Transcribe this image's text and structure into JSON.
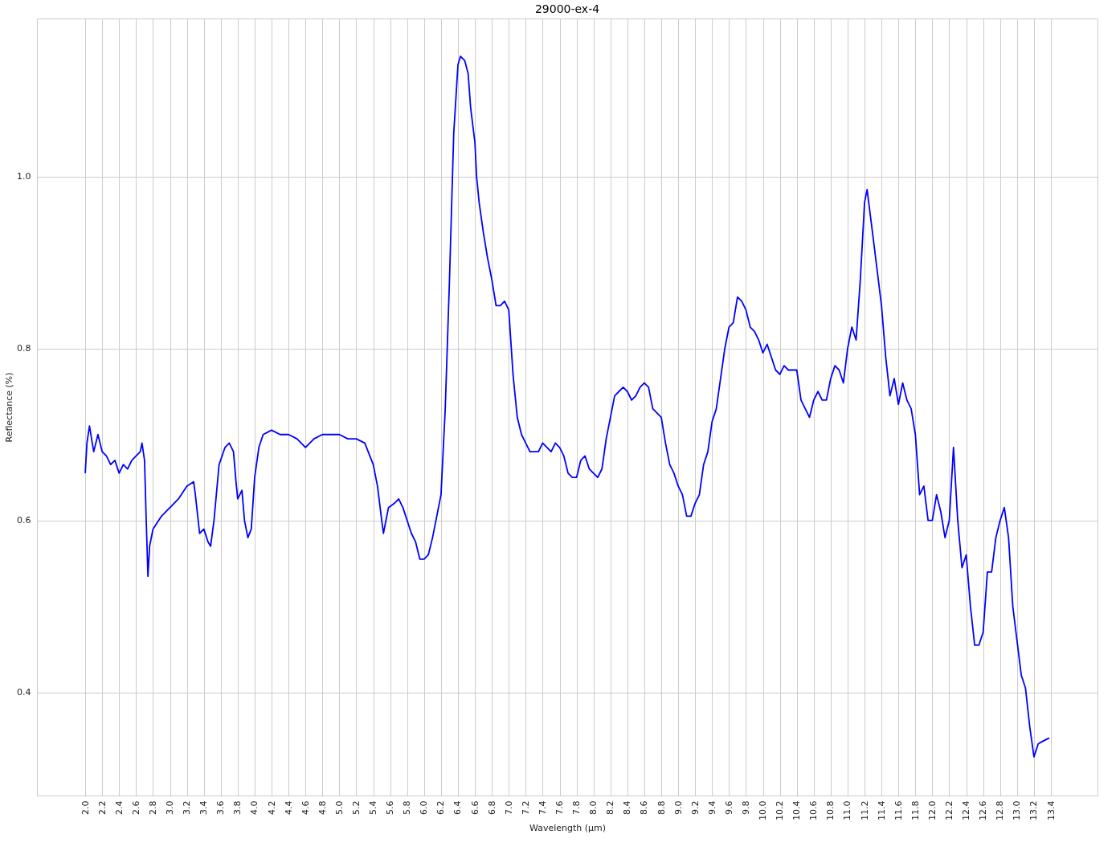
{
  "chart_data": {
    "type": "line",
    "title": "29000-ex-4",
    "xlabel": "Wavelength (µm)",
    "ylabel": "Reflectance (%)",
    "x": [
      2.0,
      2.02,
      2.05,
      2.1,
      2.15,
      2.2,
      2.25,
      2.3,
      2.35,
      2.4,
      2.45,
      2.5,
      2.55,
      2.6,
      2.65,
      2.67,
      2.7,
      2.72,
      2.74,
      2.76,
      2.8,
      2.9,
      3.0,
      3.1,
      3.2,
      3.28,
      3.3,
      3.35,
      3.4,
      3.45,
      3.48,
      3.52,
      3.58,
      3.65,
      3.7,
      3.75,
      3.78,
      3.8,
      3.85,
      3.88,
      3.92,
      3.96,
      4.0,
      4.05,
      4.1,
      4.2,
      4.3,
      4.4,
      4.5,
      4.6,
      4.7,
      4.8,
      4.9,
      5.0,
      5.1,
      5.2,
      5.3,
      5.4,
      5.45,
      5.5,
      5.52,
      5.58,
      5.65,
      5.7,
      5.75,
      5.8,
      5.85,
      5.9,
      5.95,
      6.0,
      6.05,
      6.1,
      6.15,
      6.2,
      6.25,
      6.3,
      6.35,
      6.4,
      6.43,
      6.48,
      6.52,
      6.55,
      6.6,
      6.62,
      6.65,
      6.7,
      6.75,
      6.8,
      6.85,
      6.9,
      6.95,
      7.0,
      7.05,
      7.1,
      7.15,
      7.2,
      7.25,
      7.3,
      7.35,
      7.4,
      7.5,
      7.55,
      7.6,
      7.65,
      7.7,
      7.75,
      7.8,
      7.85,
      7.9,
      7.95,
      8.0,
      8.05,
      8.1,
      8.15,
      8.2,
      8.25,
      8.3,
      8.35,
      8.4,
      8.45,
      8.5,
      8.55,
      8.6,
      8.65,
      8.7,
      8.8,
      8.85,
      8.9,
      8.95,
      9.0,
      9.05,
      9.1,
      9.15,
      9.2,
      9.25,
      9.3,
      9.35,
      9.4,
      9.45,
      9.5,
      9.55,
      9.6,
      9.65,
      9.7,
      9.75,
      9.8,
      9.85,
      9.9,
      9.95,
      10.0,
      10.05,
      10.1,
      10.15,
      10.2,
      10.25,
      10.3,
      10.4,
      10.45,
      10.5,
      10.55,
      10.6,
      10.65,
      10.7,
      10.75,
      10.8,
      10.85,
      10.9,
      10.95,
      11.0,
      11.05,
      11.1,
      11.15,
      11.2,
      11.23,
      11.3,
      11.4,
      11.45,
      11.5,
      11.55,
      11.6,
      11.65,
      11.7,
      11.75,
      11.8,
      11.85,
      11.9,
      11.95,
      12.0,
      12.05,
      12.1,
      12.15,
      12.2,
      12.25,
      12.3,
      12.35,
      12.4,
      12.45,
      12.5,
      12.55,
      12.6,
      12.65,
      12.7,
      12.75,
      12.8,
      12.85,
      12.9,
      12.95,
      13.0,
      13.05,
      13.1,
      13.15,
      13.2,
      13.25,
      13.3,
      13.38
    ],
    "series": [
      {
        "color": "#0000ff",
        "values": [
          0.655,
          0.69,
          0.71,
          0.68,
          0.7,
          0.68,
          0.675,
          0.665,
          0.67,
          0.655,
          0.665,
          0.66,
          0.67,
          0.675,
          0.68,
          0.69,
          0.67,
          0.6,
          0.535,
          0.57,
          0.59,
          0.605,
          0.615,
          0.625,
          0.64,
          0.645,
          0.63,
          0.585,
          0.59,
          0.575,
          0.57,
          0.6,
          0.665,
          0.685,
          0.69,
          0.68,
          0.645,
          0.625,
          0.635,
          0.6,
          0.58,
          0.59,
          0.65,
          0.685,
          0.7,
          0.705,
          0.7,
          0.7,
          0.695,
          0.685,
          0.695,
          0.7,
          0.7,
          0.7,
          0.695,
          0.695,
          0.69,
          0.665,
          0.64,
          0.6,
          0.585,
          0.615,
          0.62,
          0.625,
          0.615,
          0.6,
          0.585,
          0.575,
          0.555,
          0.555,
          0.56,
          0.58,
          0.605,
          0.63,
          0.73,
          0.88,
          1.05,
          1.13,
          1.14,
          1.135,
          1.12,
          1.08,
          1.04,
          1.0,
          0.97,
          0.935,
          0.905,
          0.88,
          0.85,
          0.85,
          0.855,
          0.845,
          0.77,
          0.72,
          0.7,
          0.69,
          0.68,
          0.68,
          0.68,
          0.69,
          0.68,
          0.69,
          0.685,
          0.675,
          0.655,
          0.65,
          0.65,
          0.67,
          0.675,
          0.66,
          0.655,
          0.65,
          0.66,
          0.695,
          0.72,
          0.745,
          0.75,
          0.755,
          0.75,
          0.74,
          0.745,
          0.755,
          0.76,
          0.755,
          0.73,
          0.72,
          0.69,
          0.665,
          0.655,
          0.64,
          0.63,
          0.605,
          0.605,
          0.62,
          0.63,
          0.665,
          0.68,
          0.715,
          0.73,
          0.765,
          0.8,
          0.825,
          0.83,
          0.86,
          0.855,
          0.845,
          0.825,
          0.82,
          0.81,
          0.795,
          0.805,
          0.79,
          0.775,
          0.77,
          0.78,
          0.775,
          0.775,
          0.74,
          0.73,
          0.72,
          0.74,
          0.75,
          0.74,
          0.74,
          0.765,
          0.78,
          0.775,
          0.76,
          0.8,
          0.825,
          0.81,
          0.88,
          0.97,
          0.985,
          0.93,
          0.85,
          0.79,
          0.745,
          0.765,
          0.735,
          0.76,
          0.74,
          0.73,
          0.7,
          0.63,
          0.64,
          0.6,
          0.6,
          0.63,
          0.61,
          0.58,
          0.6,
          0.685,
          0.6,
          0.545,
          0.56,
          0.5,
          0.455,
          0.455,
          0.47,
          0.54,
          0.54,
          0.58,
          0.6,
          0.615,
          0.58,
          0.5,
          0.46,
          0.42,
          0.405,
          0.36,
          0.325,
          0.34,
          0.343,
          0.347
        ]
      }
    ],
    "xlim": [
      1.43,
      13.95
    ],
    "ylim": [
      0.28,
      1.184
    ],
    "xticks": [
      {
        "value": 2,
        "label": "2.0"
      },
      2.2,
      2.4,
      2.6,
      2.8,
      {
        "value": 3,
        "label": "3.0"
      },
      3.2,
      3.4,
      3.6,
      3.8,
      {
        "value": 4,
        "label": "4.0"
      },
      4.2,
      4.4,
      4.6,
      4.8,
      {
        "value": 5,
        "label": "5.0"
      },
      5.2,
      5.4,
      5.6,
      5.8,
      {
        "value": 6,
        "label": "6.0"
      },
      6.2,
      6.4,
      6.6,
      6.8,
      {
        "value": 7,
        "label": "7.0"
      },
      7.2,
      7.4,
      7.6,
      7.8,
      {
        "value": 8,
        "label": "8.0"
      },
      8.2,
      8.4,
      8.6,
      8.8,
      {
        "value": 9,
        "label": "9.0"
      },
      9.2,
      9.4,
      9.6,
      9.8,
      {
        "value": 10,
        "label": "10.0"
      },
      10.2,
      10.4,
      10.6,
      10.8,
      {
        "value": 11,
        "label": "11.0"
      },
      11.2,
      11.4,
      11.6,
      11.8,
      {
        "value": 12,
        "label": "12.0"
      },
      12.2,
      12.4,
      12.6,
      12.8,
      {
        "value": 13,
        "label": "13.0"
      },
      13.2,
      13.4
    ],
    "yticks": [
      0.4,
      0.6,
      0.8,
      {
        "value": 1,
        "label": "1.0"
      }
    ],
    "grid": true,
    "line_style": "solid",
    "marker": "none"
  }
}
